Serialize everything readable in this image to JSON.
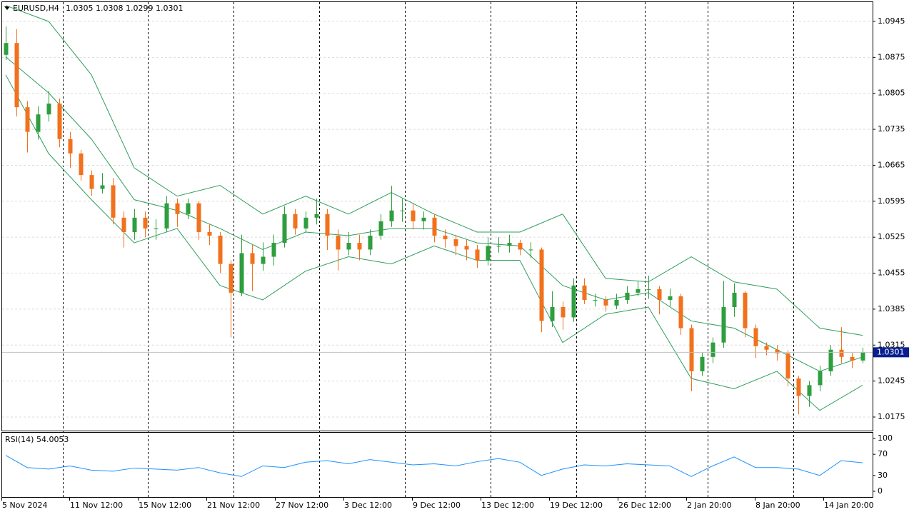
{
  "chart_data": {
    "type": "candlestick",
    "title": "EURUSD,H4",
    "quote": "1.0305 1.0308 1.0299 1.0301",
    "categories": [
      "5 Nov 2024",
      "11 Nov 12:00",
      "15 Nov 12:00",
      "21 Nov 12:00",
      "27 Nov 12:00",
      "3 Dec 12:00",
      "9 Dec 12:00",
      "13 Dec 12:00",
      "19 Dec 12:00",
      "26 Dec 12:00",
      "2 Jan 20:00",
      "8 Jan 20:00",
      "14 Jan 20:00"
    ],
    "open": [
      1.088,
      1.0903,
      1.0778,
      1.073,
      1.0764,
      1.0785,
      1.0716,
      1.0688,
      1.0646,
      1.0619,
      1.0626,
      1.0563,
      1.0535,
      1.0563,
      1.0542,
      1.0542,
      1.0591,
      1.057,
      1.0591,
      1.0535,
      1.0528,
      1.0473,
      1.0417,
      1.0494,
      1.0473,
      1.0487,
      1.0514,
      1.057,
      1.0542,
      1.0563,
      1.057,
      1.0528,
      1.0501,
      1.0514,
      1.0501,
      1.0528,
      1.0556,
      1.0577,
      1.0577,
      1.0556,
      1.0563,
      1.0528,
      1.0521,
      1.0508,
      1.0501,
      1.048,
      1.0508,
      1.0508,
      1.0514,
      1.0501,
      1.0501,
      1.0362,
      1.0389,
      1.0369,
      1.0431,
      1.0403,
      1.0403,
      1.0392,
      1.0403,
      1.0417,
      1.0424,
      1.0424,
      1.0403,
      1.041,
      1.0348,
      1.0264,
      1.0292,
      1.032,
      1.0389,
      1.0417,
      1.0348,
      1.0313,
      1.0306,
      1.0299,
      1.025,
      1.0216,
      1.0237,
      1.0264,
      1.0306,
      1.0292,
      1.0285
    ],
    "high": [
      1.0935,
      1.093,
      1.079,
      1.078,
      1.081,
      1.0795,
      1.073,
      1.0695,
      1.0655,
      1.065,
      1.064,
      1.0575,
      1.058,
      1.0575,
      1.056,
      1.0605,
      1.06,
      1.06,
      1.0595,
      1.055,
      1.0535,
      1.048,
      1.053,
      1.051,
      1.0515,
      1.053,
      1.0585,
      1.058,
      1.0575,
      1.06,
      1.058,
      1.054,
      1.0535,
      1.053,
      1.054,
      1.057,
      1.0625,
      1.06,
      1.059,
      1.0575,
      1.057,
      1.054,
      1.053,
      1.052,
      1.051,
      1.0525,
      1.0525,
      1.053,
      1.052,
      1.0515,
      1.0505,
      1.042,
      1.04,
      1.0445,
      1.0445,
      1.0415,
      1.041,
      1.0415,
      1.043,
      1.044,
      1.045,
      1.043,
      1.0425,
      1.0415,
      1.0355,
      1.03,
      1.033,
      1.044,
      1.0435,
      1.042,
      1.0355,
      1.032,
      1.0315,
      1.0305,
      1.0255,
      1.0245,
      1.0275,
      1.0315,
      1.035,
      1.03,
      1.031
    ],
    "low": [
      1.087,
      1.076,
      1.069,
      1.0715,
      1.075,
      1.07,
      1.066,
      1.0635,
      1.0605,
      1.061,
      1.055,
      1.0505,
      1.052,
      1.0525,
      1.052,
      1.0535,
      1.0545,
      1.056,
      1.052,
      1.051,
      1.0455,
      1.033,
      1.041,
      1.042,
      1.046,
      1.047,
      1.0505,
      1.053,
      1.0535,
      1.055,
      1.05,
      1.046,
      1.049,
      1.048,
      1.049,
      1.052,
      1.0545,
      1.0555,
      1.054,
      1.054,
      1.0515,
      1.0505,
      1.049,
      1.048,
      1.0465,
      1.047,
      1.0495,
      1.0495,
      1.049,
      1.0485,
      1.034,
      1.035,
      1.0345,
      1.036,
      1.0395,
      1.039,
      1.038,
      1.0385,
      1.0395,
      1.041,
      1.0405,
      1.0375,
      1.039,
      1.0335,
      1.0225,
      1.0255,
      1.028,
      1.031,
      1.037,
      1.033,
      1.029,
      1.0295,
      1.0285,
      1.0235,
      1.018,
      1.0195,
      1.0225,
      1.0255,
      1.028,
      1.027,
      1.028
    ],
    "close": [
      1.0903,
      1.0778,
      1.073,
      1.0764,
      1.0785,
      1.0716,
      1.0688,
      1.0646,
      1.0619,
      1.0626,
      1.0563,
      1.0535,
      1.0563,
      1.0542,
      1.0542,
      1.0591,
      1.057,
      1.0591,
      1.0535,
      1.0528,
      1.0473,
      1.0417,
      1.0494,
      1.0473,
      1.0487,
      1.0514,
      1.057,
      1.0542,
      1.0563,
      1.057,
      1.0528,
      1.0501,
      1.0514,
      1.0501,
      1.0528,
      1.0556,
      1.0577,
      1.0577,
      1.0556,
      1.0563,
      1.0528,
      1.0521,
      1.0508,
      1.0501,
      1.048,
      1.0508,
      1.0508,
      1.0514,
      1.0501,
      1.0501,
      1.0362,
      1.0389,
      1.0369,
      1.0431,
      1.0403,
      1.0403,
      1.0392,
      1.0403,
      1.0417,
      1.0424,
      1.0424,
      1.0403,
      1.041,
      1.0348,
      1.0264,
      1.0292,
      1.032,
      1.0389,
      1.0417,
      1.0348,
      1.0313,
      1.0306,
      1.0299,
      1.025,
      1.0216,
      1.0237,
      1.0264,
      1.0306,
      1.0292,
      1.0285,
      1.0301
    ],
    "up_color": "#2e9e3e",
    "down_color": "#f2711c",
    "ylim": [
      1.01486,
      1.09825
    ],
    "yticks": [
      1.0945,
      1.0875,
      1.0805,
      1.0735,
      1.0665,
      1.0595,
      1.0525,
      1.0455,
      1.0385,
      1.0315,
      1.0245,
      1.0175
    ],
    "grid": true,
    "last_price": 1.0301,
    "bands": {
      "color": "#2e9e5b",
      "x": [
        0,
        4,
        8,
        12,
        16,
        20,
        24,
        28,
        32,
        36,
        40,
        44,
        48,
        52,
        56,
        60,
        64,
        68,
        72,
        76,
        80
      ],
      "upper": [
        1.0976,
        1.0945,
        1.0841,
        1.066,
        1.0605,
        1.0626,
        1.057,
        1.0605,
        1.057,
        1.0612,
        1.057,
        1.0535,
        1.0535,
        1.057,
        1.0445,
        1.0438,
        1.0487,
        1.0438,
        1.0424,
        1.0348,
        1.0334
      ],
      "middle": [
        1.0876,
        1.0806,
        1.0716,
        1.0598,
        1.0577,
        1.0542,
        1.0501,
        1.0535,
        1.0528,
        1.0542,
        1.0542,
        1.0514,
        1.0508,
        1.0431,
        1.0403,
        1.0417,
        1.0362,
        1.0348,
        1.0306,
        1.0264,
        1.0292
      ],
      "lower": [
        1.0841,
        1.0688,
        1.0598,
        1.0514,
        1.0542,
        1.0431,
        1.0403,
        1.0459,
        1.0487,
        1.0473,
        1.0508,
        1.048,
        1.048,
        1.032,
        1.0375,
        1.0389,
        1.025,
        1.023,
        1.0264,
        1.0188,
        1.0237
      ]
    },
    "rsi": {
      "label": "RSI(14) 54.0053",
      "color": "#1e90ff",
      "x": [
        0,
        2,
        4,
        6,
        8,
        10,
        12,
        14,
        16,
        18,
        20,
        22,
        24,
        26,
        28,
        30,
        32,
        34,
        36,
        38,
        40,
        42,
        44,
        46,
        48,
        50,
        52,
        54,
        56,
        58,
        60,
        62,
        64,
        66,
        68,
        70,
        72,
        74,
        76,
        78,
        80
      ],
      "values": [
        68,
        45,
        42,
        48,
        40,
        38,
        44,
        42,
        40,
        45,
        35,
        28,
        48,
        45,
        55,
        58,
        52,
        60,
        55,
        50,
        52,
        48,
        56,
        62,
        55,
        30,
        42,
        50,
        48,
        52,
        50,
        48,
        28,
        48,
        65,
        45,
        45,
        42,
        30,
        58,
        54
      ],
      "ylim": [
        0,
        100
      ],
      "yticks": [
        100,
        70,
        30,
        0
      ]
    }
  }
}
